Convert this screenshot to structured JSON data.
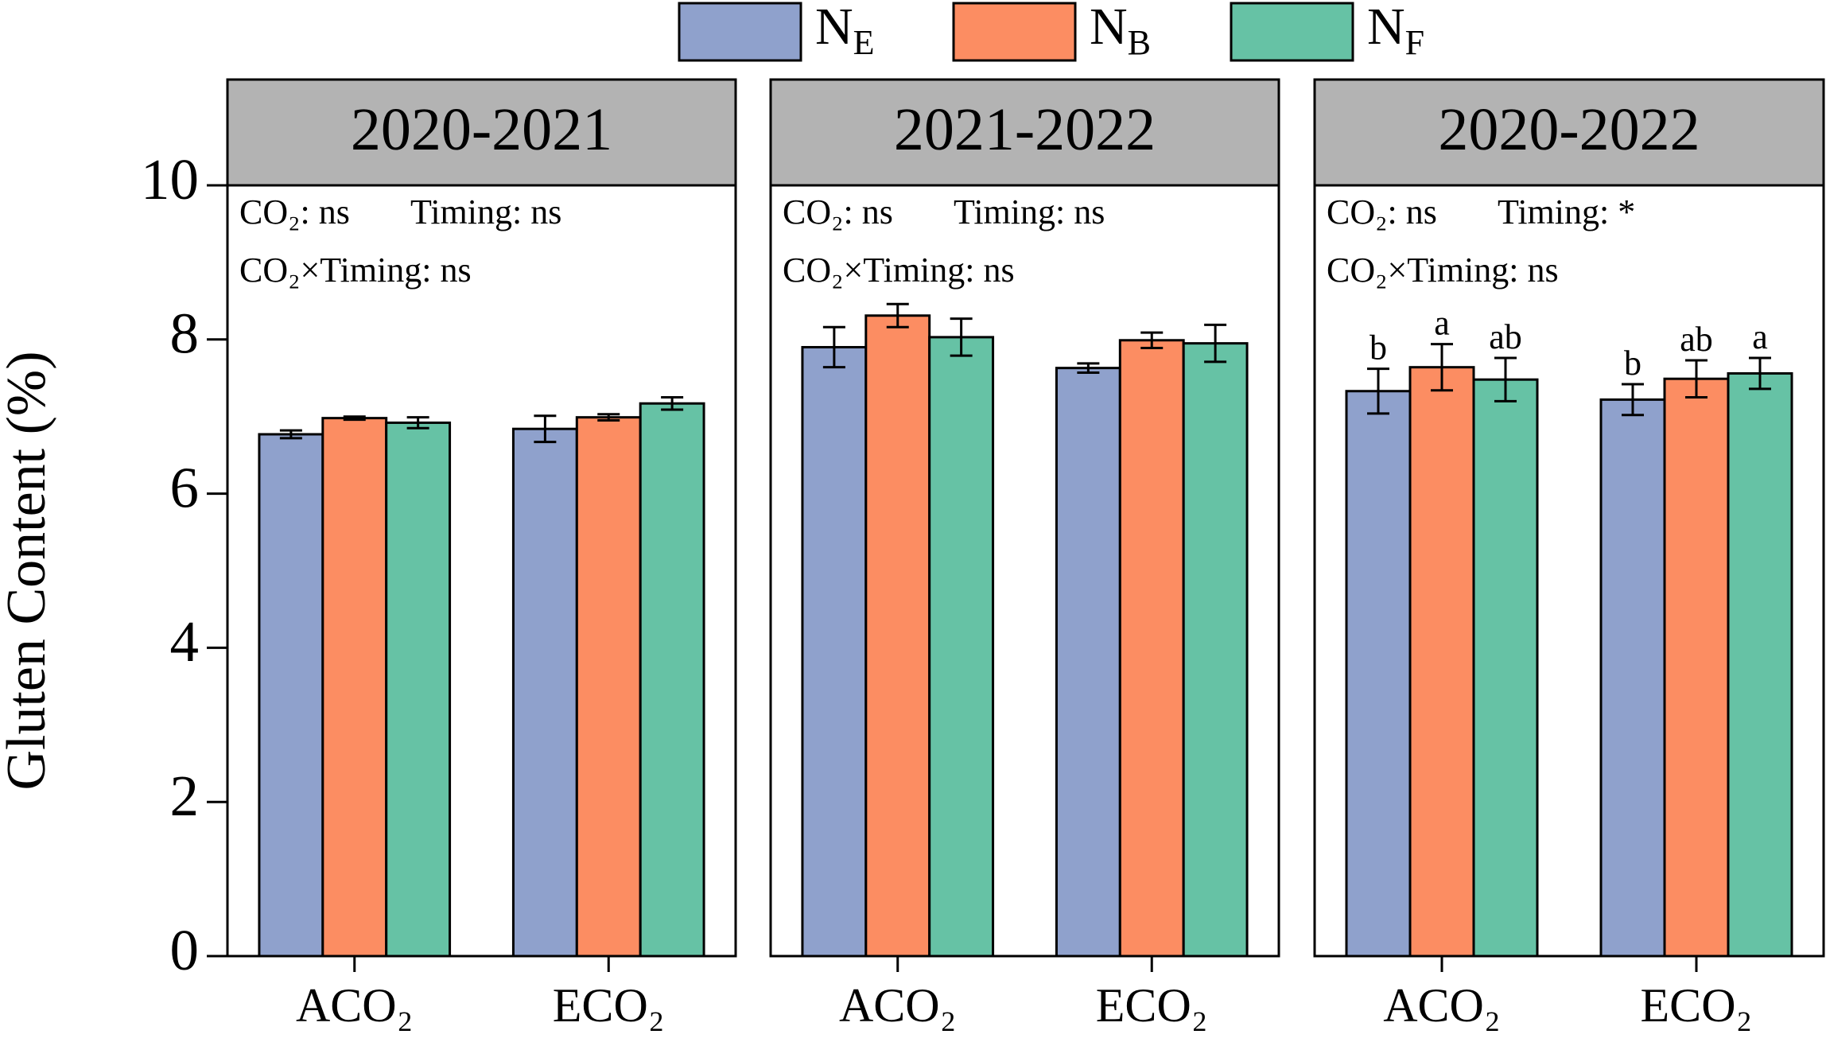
{
  "chart_data": [
    {
      "type": "bar",
      "title": "2020-2021",
      "y_label": "Gluten Content (%)",
      "annotations": [
        "CO₂: ns",
        "Timing: ns",
        "CO₂×Timing: ns"
      ],
      "categories": [
        "ACO₂",
        "ECO₂"
      ],
      "ylim": [
        0,
        10
      ],
      "yticks": [
        0,
        2,
        4,
        6,
        8,
        10
      ],
      "series": [
        {
          "name": "NE",
          "color": "#8fa1cc",
          "values": [
            6.77,
            6.84
          ],
          "errors": [
            0.05,
            0.17
          ]
        },
        {
          "name": "NB",
          "color": "#fc8d62",
          "values": [
            6.98,
            6.99
          ],
          "errors": [
            0.02,
            0.04
          ]
        },
        {
          "name": "NF",
          "color": "#66c2a5",
          "values": [
            6.92,
            7.17
          ],
          "errors": [
            0.07,
            0.08
          ]
        }
      ]
    },
    {
      "type": "bar",
      "title": "2021-2022",
      "annotations": [
        "CO₂: ns",
        "Timing: ns",
        "CO₂×Timing: ns"
      ],
      "categories": [
        "ACO₂",
        "ECO₂"
      ],
      "series": [
        {
          "color": "#8fa1cc",
          "values": [
            7.9,
            7.63
          ],
          "errors": [
            0.26,
            0.06
          ]
        },
        {
          "color": "#fc8d62",
          "values": [
            8.31,
            7.99
          ],
          "errors": [
            0.15,
            0.1
          ]
        },
        {
          "color": "#66c2a5",
          "values": [
            8.03,
            7.95
          ],
          "errors": [
            0.24,
            0.24
          ]
        }
      ]
    },
    {
      "type": "bar",
      "title": "2020-2022",
      "annotations": [
        "CO₂: ns",
        "Timing: *",
        "CO₂×Timing: ns"
      ],
      "categories": [
        "ACO₂",
        "ECO₂"
      ],
      "series": [
        {
          "color": "#8fa1cc",
          "values": [
            7.33,
            7.22
          ],
          "errors": [
            0.29,
            0.2
          ],
          "letters": [
            "b",
            "b"
          ]
        },
        {
          "color": "#fc8d62",
          "values": [
            7.64,
            7.49
          ],
          "errors": [
            0.3,
            0.24
          ],
          "letters": [
            "a",
            "ab"
          ]
        },
        {
          "color": "#66c2a5",
          "values": [
            7.48,
            7.56
          ],
          "errors": [
            0.28,
            0.2
          ],
          "letters": [
            "ab",
            "a"
          ]
        }
      ]
    }
  ]
}
